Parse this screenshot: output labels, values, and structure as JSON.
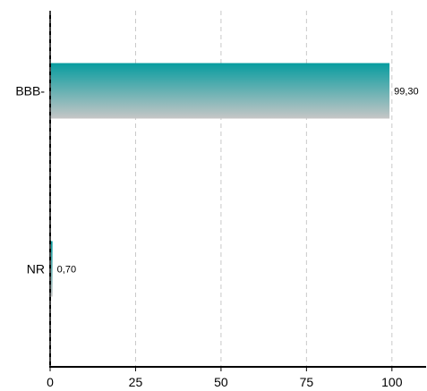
{
  "chart_data": {
    "type": "bar",
    "orientation": "horizontal",
    "categories": [
      "BBB-",
      "NR"
    ],
    "values": [
      99.3,
      0.7
    ],
    "value_labels": [
      "99,30",
      "0,70"
    ],
    "xlim": [
      0,
      110
    ],
    "x_ticks": [
      0,
      25,
      50,
      75,
      100
    ],
    "x_tick_labels": [
      "0",
      "25",
      "50",
      "75",
      "100"
    ],
    "grid": "vertical-dashed",
    "colors": {
      "bar_top": "#079C9F",
      "bar_bottom": "#C6C6C6",
      "grid": "#C8C8C8",
      "axis": "#000000"
    }
  }
}
